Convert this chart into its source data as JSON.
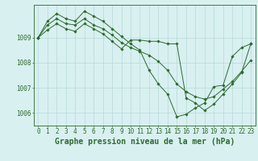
{
  "title": "Graphe pression niveau de la mer (hPa)",
  "xlabel_hours": [
    0,
    1,
    2,
    3,
    4,
    5,
    6,
    7,
    8,
    9,
    10,
    11,
    12,
    13,
    14,
    15,
    16,
    17,
    18,
    19,
    20,
    21,
    22,
    23
  ],
  "series": [
    [
      1009.0,
      1009.5,
      1009.75,
      1009.55,
      1009.5,
      1009.75,
      1009.5,
      1009.35,
      1009.1,
      1008.8,
      1008.6,
      1008.45,
      1008.3,
      1008.05,
      1007.7,
      1007.15,
      1006.85,
      1006.65,
      1006.55,
      1006.65,
      1006.95,
      1007.25,
      1007.65,
      1008.1
    ],
    [
      1009.0,
      1009.65,
      1009.95,
      1009.75,
      1009.65,
      1010.05,
      1009.85,
      1009.65,
      1009.35,
      1009.05,
      1008.75,
      1008.5,
      1007.7,
      1007.15,
      1006.75,
      1005.85,
      1005.95,
      1006.2,
      1006.4,
      1007.05,
      1007.1,
      1008.25,
      1008.6,
      1008.75
    ],
    [
      1009.0,
      1009.3,
      1009.55,
      1009.35,
      1009.25,
      1009.55,
      1009.35,
      1009.15,
      1008.85,
      1008.55,
      1008.9,
      1008.9,
      1008.85,
      1008.85,
      1008.75,
      1008.75,
      1006.6,
      1006.4,
      1006.1,
      1006.35,
      1006.75,
      1007.15,
      1007.6,
      1008.75
    ]
  ],
  "line_color": "#2d6a2d",
  "marker_color": "#2d6a2d",
  "bg_color": "#d8f0f0",
  "grid_color": "#b8d8d8",
  "axis_color": "#2d6a2d",
  "ylim": [
    1005.5,
    1010.3
  ],
  "yticks": [
    1006,
    1007,
    1008,
    1009
  ],
  "title_fontsize": 7,
  "tick_fontsize": 5.5
}
